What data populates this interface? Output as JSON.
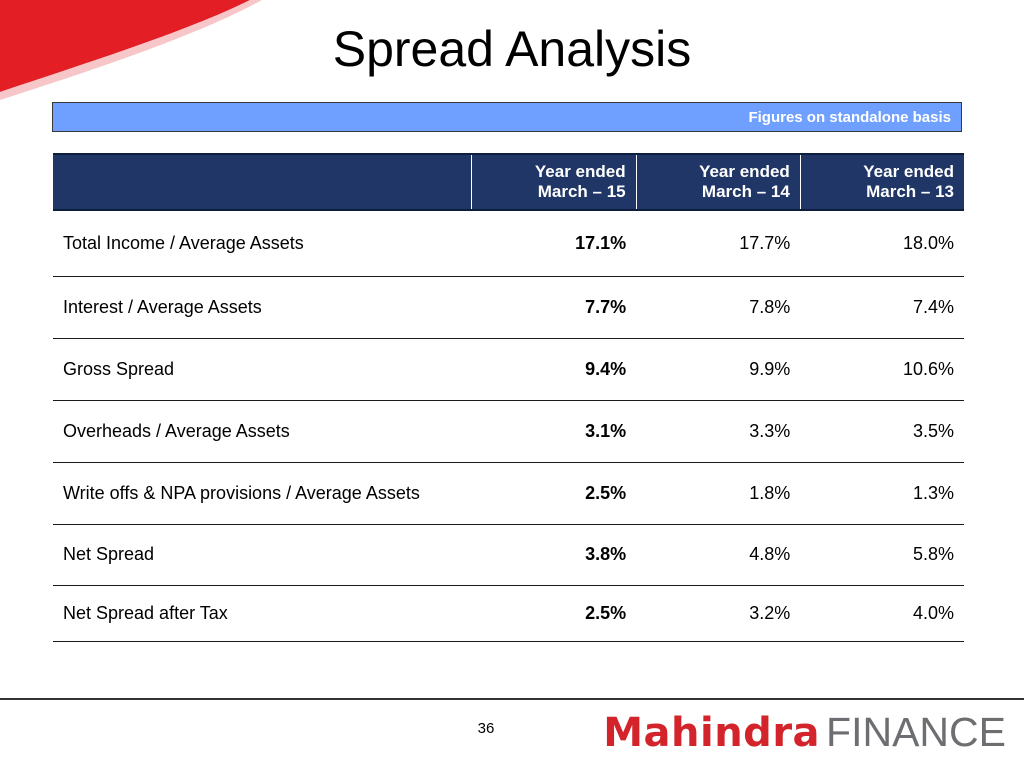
{
  "title": "Spread Analysis",
  "basis_note": "Figures on standalone basis",
  "table": {
    "columns": [
      {
        "line1": "Year ended",
        "line2": "March – 15"
      },
      {
        "line1": "Year ended",
        "line2": "March – 14"
      },
      {
        "line1": "Year ended",
        "line2": "March – 13"
      }
    ],
    "rows": [
      {
        "label": "Total Income / Average Assets",
        "values": [
          "17.1%",
          "17.7%",
          "18.0%"
        ]
      },
      {
        "label": "Interest / Average Assets",
        "values": [
          "7.7%",
          "7.8%",
          "7.4%"
        ]
      },
      {
        "label": "Gross Spread",
        "values": [
          "9.4%",
          "9.9%",
          "10.6%"
        ]
      },
      {
        "label": "Overheads / Average Assets",
        "values": [
          "3.1%",
          "3.3%",
          "3.5%"
        ]
      },
      {
        "label": "Write offs & NPA provisions / Average Assets",
        "values": [
          "2.5%",
          "1.8%",
          "1.3%"
        ]
      },
      {
        "label": "Net Spread",
        "values": [
          "3.8%",
          "4.8%",
          "5.8%"
        ]
      },
      {
        "label": "Net Spread after Tax",
        "values": [
          "2.5%",
          "3.2%",
          "4.0%"
        ]
      }
    ]
  },
  "page_number": "36",
  "logo": {
    "brand": "Mahindra",
    "sub": "FINANCE"
  },
  "colors": {
    "accent_red": "#e31e24",
    "header_navy": "#1f3666",
    "basis_blue": "#6fa0ff"
  }
}
